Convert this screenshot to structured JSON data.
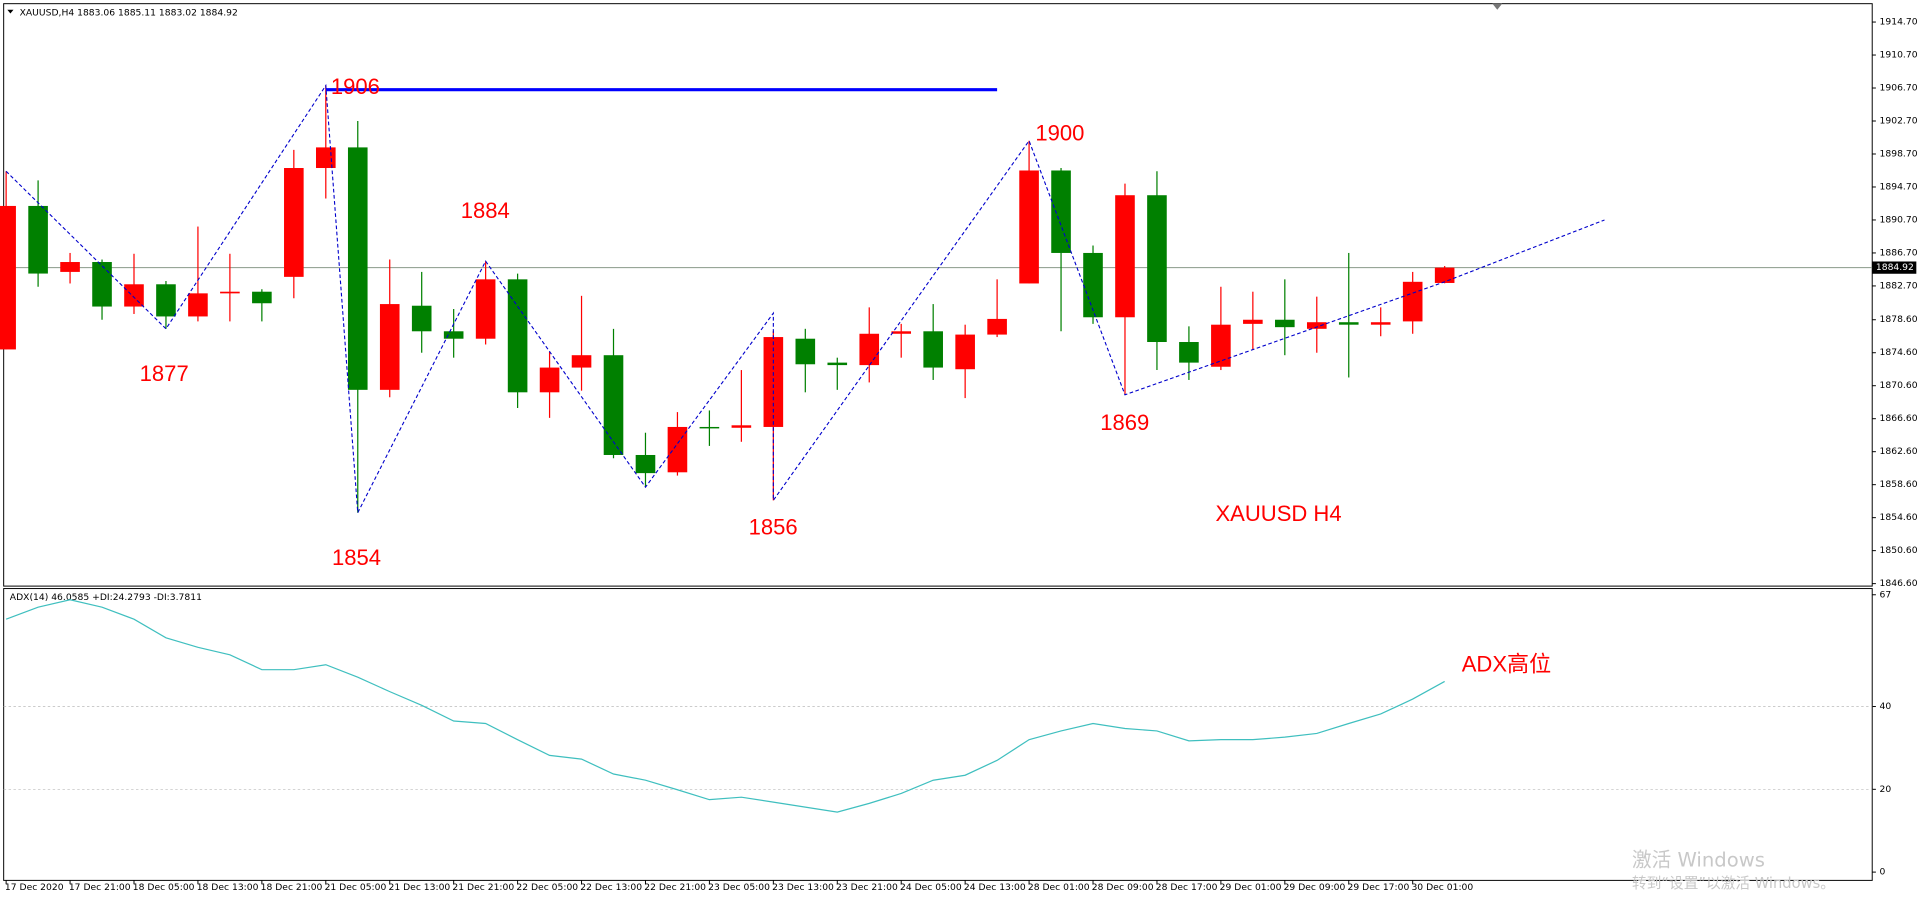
{
  "chart_data": {
    "type": "candlestick",
    "symbol": "XAUUSD,H4",
    "categories": [
      "17 Dec 2020",
      null,
      "17 Dec 21:00",
      null,
      "18 Dec 05:00",
      null,
      "18 Dec 13:00",
      null,
      "18 Dec 21:00",
      null,
      "21 Dec 05:00",
      null,
      "21 Dec 13:00",
      null,
      "21 Dec 21:00",
      null,
      "22 Dec 05:00",
      null,
      "22 Dec 13:00",
      null,
      "22 Dec 21:00",
      null,
      "23 Dec 05:00",
      null,
      "23 Dec 13:00",
      null,
      "23 Dec 21:00",
      null,
      "24 Dec 05:00",
      null,
      "24 Dec 13:00",
      null,
      "28 Dec 01:00",
      null,
      "28 Dec 09:00",
      null,
      "28 Dec 17:00",
      null,
      "29 Dec 01:00",
      null,
      "29 Dec 09:00",
      null,
      "29 Dec 17:00",
      null,
      "30 Dec 01:00",
      null
    ],
    "candles": {
      "up_color": "#ff0000",
      "down_color": "#008000",
      "open": [
        1875.0,
        1892.4,
        1884.4,
        1885.6,
        1880.2,
        1882.9,
        1879.0,
        1881.8,
        1882.0,
        1883.8,
        1897.0,
        1899.5,
        1870.1,
        1880.3,
        1877.2,
        1876.3,
        1883.5,
        1869.8,
        1872.8,
        1874.3,
        1862.2,
        1860.1,
        1865.6,
        1865.5,
        1865.6,
        1876.3,
        1873.4,
        1873.1,
        1876.9,
        1877.2,
        1872.6,
        1876.8,
        1883.0,
        1896.7,
        1886.7,
        1878.9,
        1893.7,
        1875.9,
        1872.9,
        1878.1,
        1878.6,
        1877.5,
        1878.3,
        1878.0,
        1878.4,
        1883.06
      ],
      "high": [
        1896.6,
        1895.5,
        1886.7,
        1885.9,
        1886.6,
        1883.3,
        1889.9,
        1886.6,
        1882.3,
        1899.2,
        1907.0,
        1902.7,
        1885.9,
        1884.4,
        1879.9,
        1885.7,
        1884.2,
        1874.7,
        1881.5,
        1877.5,
        1864.9,
        1867.4,
        1867.6,
        1872.5,
        1877.2,
        1877.5,
        1874.0,
        1880.1,
        1878.1,
        1880.5,
        1878.0,
        1883.5,
        1900.3,
        1897.0,
        1887.6,
        1895.1,
        1896.6,
        1877.8,
        1882.6,
        1882.0,
        1883.5,
        1881.4,
        1886.7,
        1880.1,
        1884.4,
        1885.11
      ],
      "low": [
        1875.0,
        1882.6,
        1883.0,
        1878.6,
        1879.3,
        1877.5,
        1878.4,
        1878.4,
        1878.4,
        1881.2,
        1893.3,
        1855.2,
        1869.2,
        1874.6,
        1874.0,
        1875.6,
        1867.9,
        1866.7,
        1870.0,
        1861.8,
        1858.3,
        1859.7,
        1863.3,
        1863.8,
        1856.7,
        1869.8,
        1870.1,
        1871.0,
        1874.0,
        1871.3,
        1869.1,
        1876.5,
        1883.0,
        1877.2,
        1878.1,
        1869.5,
        1872.5,
        1871.3,
        1872.5,
        1875.0,
        1874.3,
        1874.6,
        1871.6,
        1876.6,
        1876.9,
        1883.02
      ],
      "close": [
        1892.4,
        1884.2,
        1885.6,
        1880.2,
        1882.9,
        1879.0,
        1881.8,
        1882.0,
        1880.6,
        1897.0,
        1899.5,
        1870.1,
        1880.5,
        1877.2,
        1876.3,
        1883.5,
        1869.8,
        1872.8,
        1874.3,
        1862.2,
        1860.0,
        1865.6,
        1865.5,
        1865.8,
        1876.5,
        1873.2,
        1873.1,
        1876.9,
        1877.2,
        1872.8,
        1876.8,
        1878.7,
        1896.7,
        1886.7,
        1878.9,
        1893.7,
        1875.9,
        1873.4,
        1878.0,
        1878.6,
        1877.7,
        1878.3,
        1878.0,
        1878.3,
        1883.2,
        1884.92
      ]
    },
    "ylim": [
      1846.3,
      1916.63
    ],
    "yticks": [
      {
        "value": 1914.7,
        "label": "1914.70"
      },
      {
        "value": 1910.7,
        "label": "1910.70"
      },
      {
        "value": 1906.7,
        "label": "1906.70"
      },
      {
        "value": 1902.7,
        "label": "1902.70"
      },
      {
        "value": 1898.7,
        "label": "1898.70"
      },
      {
        "value": 1894.7,
        "label": "1894.70"
      },
      {
        "value": 1890.7,
        "label": "1890.70"
      },
      {
        "value": 1886.7,
        "label": "1886.70"
      },
      {
        "value": 1882.7,
        "label": "1882.70"
      },
      {
        "value": 1878.6,
        "label": "1878.60"
      },
      {
        "value": 1874.6,
        "label": "1874.60"
      },
      {
        "value": 1870.6,
        "label": "1870.60"
      },
      {
        "value": 1866.6,
        "label": "1866.60"
      },
      {
        "value": 1862.6,
        "label": "1862.60"
      },
      {
        "value": 1858.6,
        "label": "1858.60"
      },
      {
        "value": 1854.6,
        "label": "1854.60"
      },
      {
        "value": 1850.6,
        "label": "1850.60"
      },
      {
        "value": 1846.6,
        "label": "1846.60"
      }
    ],
    "level": {
      "value": 1906.5,
      "color": "#0000ff",
      "from": 10,
      "to": 31
    },
    "zigzag": {
      "color": "#0000cc",
      "points": [
        [
          0,
          1896.6
        ],
        [
          5,
          1877.5
        ],
        [
          10,
          1907.0
        ],
        [
          11,
          1855.2
        ],
        [
          15,
          1885.7
        ],
        [
          20,
          1858.3
        ],
        [
          24,
          1879.4
        ],
        [
          24,
          1856.7
        ],
        [
          32,
          1900.3
        ],
        [
          35,
          1869.5
        ],
        [
          45,
          1883.2
        ],
        [
          50,
          1890.7
        ]
      ]
    },
    "annotations": [
      "1906",
      "1884",
      "1877",
      "1854",
      "1856",
      "1900",
      "1869",
      "XAUUSD  H4",
      "ADX高位"
    ],
    "indicator": {
      "name": "ADX(14)",
      "di_text": "+DI:24.2793 -DI:3.7811",
      "color": "#3fbfbf",
      "values": [
        61.1,
        64.0,
        65.8,
        64.0,
        61.1,
        56.6,
        54.3,
        52.5,
        48.9,
        48.9,
        50.1,
        47.1,
        43.6,
        40.3,
        36.5,
        35.9,
        32.0,
        28.2,
        27.3,
        23.7,
        22.2,
        19.9,
        17.5,
        18.1,
        16.9,
        15.7,
        14.5,
        16.6,
        19.0,
        22.2,
        23.4,
        27.0,
        32.0,
        34.1,
        35.9,
        34.7,
        34.1,
        31.7,
        32.0,
        32.0,
        32.6,
        33.5,
        35.9,
        38.2,
        41.8,
        46.0585
      ],
      "ylim": [
        -2,
        68.5
      ],
      "yticks": [
        0,
        20,
        40,
        67
      ],
      "grid": [
        20,
        40
      ]
    },
    "watermark": [
      "激活 Windows",
      "转到“设置”以激活 Windows。"
    ]
  }
}
